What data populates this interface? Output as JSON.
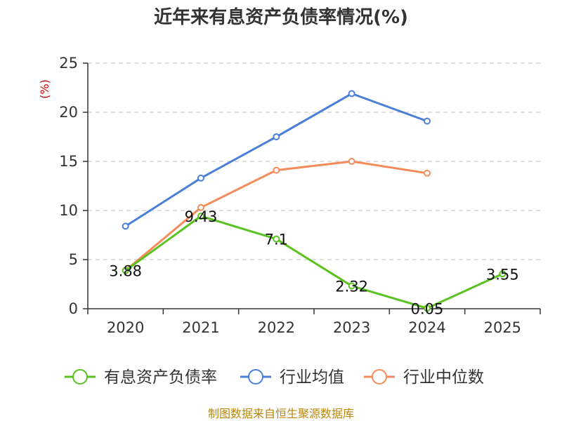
{
  "chart_data": {
    "type": "line",
    "title": "近年来有息资产负债率情况(%)",
    "ylabel": "(%)",
    "xlabel": "",
    "categories": [
      "2020",
      "2021",
      "2022",
      "2023",
      "2024",
      "2025"
    ],
    "ylim": [
      0,
      25
    ],
    "yticks": [
      0,
      5,
      10,
      15,
      20,
      25
    ],
    "grid": true,
    "legend_position": "bottom",
    "series": [
      {
        "name": "有息资产负债率",
        "color": "#5ac21e",
        "values": [
          3.88,
          9.43,
          7.1,
          2.32,
          0.05,
          3.55
        ],
        "data_labels": [
          "3.88",
          "9.43",
          "7.1",
          "2.32",
          "0.05",
          "3.55"
        ]
      },
      {
        "name": "行业均值",
        "color": "#4a7fd9",
        "values": [
          8.4,
          13.3,
          17.5,
          21.9,
          19.1,
          null
        ]
      },
      {
        "name": "行业中位数",
        "color": "#f58b5a",
        "values": [
          3.9,
          10.3,
          14.1,
          15.0,
          13.8,
          null
        ]
      }
    ],
    "source": "制图数据来自恒生聚源数据库"
  }
}
